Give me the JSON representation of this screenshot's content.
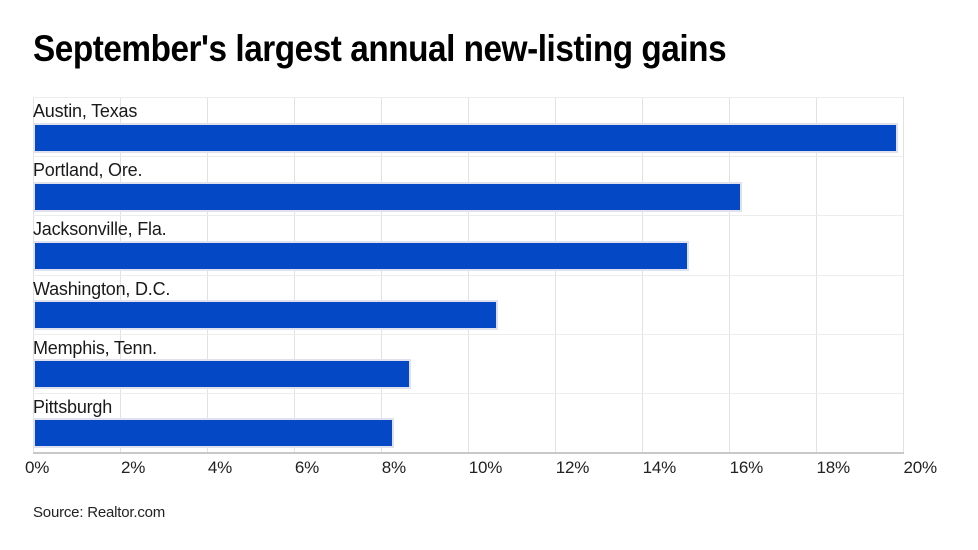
{
  "title": "September's largest annual new-listing gains",
  "source": "Source: Realtor.com",
  "colors": {
    "bar": "#0548c6",
    "bar_border": "#dfe1ee",
    "gridline": "#e2e2e2",
    "row_line": "#ededed",
    "axis_line": "#c8c8c8",
    "title": "#000000",
    "category_label": "#1a1a1a",
    "tick_label": "#222222"
  },
  "chart_data": {
    "type": "bar",
    "orientation": "horizontal",
    "title": "September's largest annual new-listing gains",
    "categories": [
      "Austin, Texas",
      "Portland, Ore.",
      "Jacksonville, Fla.",
      "Washington, D.C.",
      "Memphis, Tenn.",
      "Pittsburgh"
    ],
    "values": [
      19.9,
      16.3,
      15.1,
      10.7,
      8.7,
      8.3
    ],
    "unit": "%",
    "xlabel": "",
    "ylabel": "",
    "xlim": [
      0,
      20
    ],
    "xticks": [
      "0%",
      "2%",
      "4%",
      "6%",
      "8%",
      "10%",
      "12%",
      "14%",
      "16%",
      "18%",
      "20%"
    ],
    "grid": true,
    "legend": "none",
    "source": "Source: Realtor.com"
  }
}
